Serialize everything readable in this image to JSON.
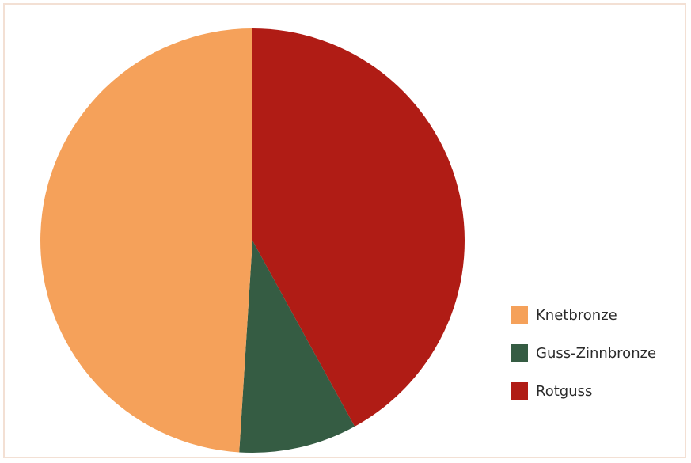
{
  "chart_data": {
    "type": "pie",
    "title": "",
    "legend_position": "right",
    "slices": [
      {
        "label": "Rotguss",
        "value": 42,
        "color": "#b01c15"
      },
      {
        "label": "Guss-Zinnbronze",
        "value": 9,
        "color": "#355c43"
      },
      {
        "label": "Knetbronze",
        "value": 49,
        "color": "#f5a15a"
      }
    ],
    "legend": [
      {
        "label": "Knetbronze",
        "color": "#f5a15a"
      },
      {
        "label": "Guss-Zinnbronze",
        "color": "#355c43"
      },
      {
        "label": "Rotguss",
        "color": "#b01c15"
      }
    ]
  }
}
